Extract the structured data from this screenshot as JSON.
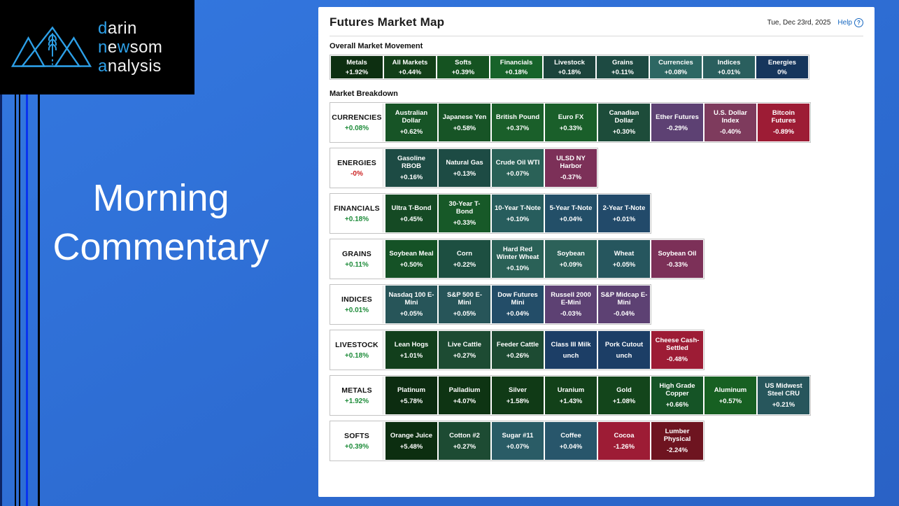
{
  "colors": {
    "accent_logo_blue": "#2da0e8",
    "background_blue": "#2d6cd2",
    "stripe_bright_blue": "#0933ee",
    "positive_label_green": "#1e8c3a",
    "negative_label_red": "#cc2222",
    "help_link_blue": "#1667c0"
  },
  "left": {
    "title_line1": "Morning",
    "title_line2": "Commentary",
    "logo": {
      "lines": [
        {
          "segments": [
            {
              "text": "d",
              "accent": true
            },
            {
              "text": "arin",
              "accent": false
            }
          ]
        },
        {
          "segments": [
            {
              "text": "n",
              "accent": true
            },
            {
              "text": "e",
              "accent": false
            },
            {
              "text": "w",
              "accent": true
            },
            {
              "text": "som",
              "accent": false
            }
          ]
        },
        {
          "segments": [
            {
              "text": "a",
              "accent": true
            },
            {
              "text": "nalysis",
              "accent": false
            }
          ]
        }
      ]
    }
  },
  "panel": {
    "title": "Futures Market Map",
    "date": "Tue, Dec 23rd, 2025",
    "help_label": "Help",
    "help_icon_glyph": "?",
    "overall": {
      "heading": "Overall Market Movement",
      "tiles": [
        {
          "label": "Metals",
          "value": "+1.92%",
          "color": "#0d2f11"
        },
        {
          "label": "All Markets",
          "value": "+0.44%",
          "color": "#123f18"
        },
        {
          "label": "Softs",
          "value": "+0.39%",
          "color": "#155321"
        },
        {
          "label": "Financials",
          "value": "+0.18%",
          "color": "#17632a"
        },
        {
          "label": "Livestock",
          "value": "+0.18%",
          "color": "#1c443c"
        },
        {
          "label": "Grains",
          "value": "+0.11%",
          "color": "#1d4a42"
        },
        {
          "label": "Currencies",
          "value": "+0.08%",
          "color": "#2d6763"
        },
        {
          "label": "Indices",
          "value": "+0.01%",
          "color": "#2a5f5e"
        },
        {
          "label": "Energies",
          "value": "0%",
          "color": "#16365c"
        }
      ]
    },
    "breakdown": {
      "heading": "Market Breakdown",
      "rows": [
        {
          "category": "CURRENCIES",
          "change": "+0.08%",
          "change_color": "#1e8c3a",
          "tiles": [
            {
              "name": "Australian Dollar",
              "value": "+0.62%",
              "color": "#175426"
            },
            {
              "name": "Japanese Yen",
              "value": "+0.58%",
              "color": "#175426"
            },
            {
              "name": "British Pound",
              "value": "+0.37%",
              "color": "#1a5f2a"
            },
            {
              "name": "Euro FX",
              "value": "+0.33%",
              "color": "#1a5f2a"
            },
            {
              "name": "Canadian Dollar",
              "value": "+0.30%",
              "color": "#1d4c3a"
            },
            {
              "name": "Ether Futures",
              "value": "-0.29%",
              "color": "#5d4173"
            },
            {
              "name": "U.S. Dollar Index",
              "value": "-0.40%",
              "color": "#7e3b5d"
            },
            {
              "name": "Bitcoin Futures",
              "value": "-0.89%",
              "color": "#9d1c35"
            }
          ]
        },
        {
          "category": "ENERGIES",
          "change": "-0%",
          "change_color": "#cc2222",
          "tiles": [
            {
              "name": "Gasoline RBOB",
              "value": "+0.16%",
              "color": "#1d4b44"
            },
            {
              "name": "Natural Gas",
              "value": "+0.13%",
              "color": "#1d4b44"
            },
            {
              "name": "Crude Oil WTI",
              "value": "+0.07%",
              "color": "#2a6157"
            },
            {
              "name": "ULSD NY Harbor",
              "value": "-0.37%",
              "color": "#7c3058"
            }
          ]
        },
        {
          "category": "FINANCIALS",
          "change": "+0.18%",
          "change_color": "#1e8c3a",
          "tiles": [
            {
              "name": "Ultra T-Bond",
              "value": "+0.45%",
              "color": "#154a24"
            },
            {
              "name": "30-Year T-Bond",
              "value": "+0.33%",
              "color": "#175928"
            },
            {
              "name": "10-Year T-Note",
              "value": "+0.10%",
              "color": "#275d5d"
            },
            {
              "name": "5-Year T-Note",
              "value": "+0.04%",
              "color": "#234f68"
            },
            {
              "name": "2-Year T-Note",
              "value": "+0.01%",
              "color": "#224a6a"
            }
          ]
        },
        {
          "category": "GRAINS",
          "change": "+0.11%",
          "change_color": "#1e8c3a",
          "tiles": [
            {
              "name": "Soybean Meal",
              "value": "+0.50%",
              "color": "#155226"
            },
            {
              "name": "Corn",
              "value": "+0.22%",
              "color": "#1d4f41"
            },
            {
              "name": "Hard Red Winter Wheat",
              "value": "+0.10%",
              "color": "#2a6157"
            },
            {
              "name": "Soybean",
              "value": "+0.09%",
              "color": "#2c6159"
            },
            {
              "name": "Wheat",
              "value": "+0.05%",
              "color": "#26565e"
            },
            {
              "name": "Soybean Oil",
              "value": "-0.33%",
              "color": "#7c3058"
            }
          ]
        },
        {
          "category": "INDICES",
          "change": "+0.01%",
          "change_color": "#1e8c3a",
          "tiles": [
            {
              "name": "Nasdaq 100 E-Mini",
              "value": "+0.05%",
              "color": "#275559"
            },
            {
              "name": "S&P 500 E-Mini",
              "value": "+0.05%",
              "color": "#275559"
            },
            {
              "name": "Dow Futures Mini",
              "value": "+0.04%",
              "color": "#234d68"
            },
            {
              "name": "Russell 2000 E-Mini",
              "value": "-0.03%",
              "color": "#5d4173"
            },
            {
              "name": "S&P Midcap E-Mini",
              "value": "-0.04%",
              "color": "#5d4173"
            }
          ]
        },
        {
          "category": "LIVESTOCK",
          "change": "+0.18%",
          "change_color": "#1e8c3a",
          "tiles": [
            {
              "name": "Lean Hogs",
              "value": "+1.01%",
              "color": "#123f1c"
            },
            {
              "name": "Live Cattle",
              "value": "+0.27%",
              "color": "#1d4b33"
            },
            {
              "name": "Feeder Cattle",
              "value": "+0.26%",
              "color": "#1d4b33"
            },
            {
              "name": "Class III Milk",
              "value": "unch",
              "color": "#1c3e66"
            },
            {
              "name": "Pork Cutout",
              "value": "unch",
              "color": "#1c3e66"
            },
            {
              "name": "Cheese Cash-Settled",
              "value": "-0.48%",
              "color": "#9d1c35"
            }
          ]
        },
        {
          "category": "METALS",
          "change": "+1.92%",
          "change_color": "#1e8c3a",
          "tiles": [
            {
              "name": "Platinum",
              "value": "+5.78%",
              "color": "#0c2c10"
            },
            {
              "name": "Palladium",
              "value": "+4.07%",
              "color": "#0e3413"
            },
            {
              "name": "Silver",
              "value": "+1.58%",
              "color": "#103a16"
            },
            {
              "name": "Uranium",
              "value": "+1.43%",
              "color": "#124119"
            },
            {
              "name": "Gold",
              "value": "+1.08%",
              "color": "#13451b"
            },
            {
              "name": "High Grade Copper",
              "value": "+0.66%",
              "color": "#155426"
            },
            {
              "name": "Aluminum",
              "value": "+0.57%",
              "color": "#176022"
            },
            {
              "name": "US Midwest Steel CRU",
              "value": "+0.21%",
              "color": "#27565c"
            }
          ]
        },
        {
          "category": "SOFTS",
          "change": "+0.39%",
          "change_color": "#1e8c3a",
          "tiles": [
            {
              "name": "Orange Juice",
              "value": "+5.48%",
              "color": "#0c2e10"
            },
            {
              "name": "Cotton #2",
              "value": "+0.27%",
              "color": "#1d4b33"
            },
            {
              "name": "Sugar #11",
              "value": "+0.07%",
              "color": "#2a5c66"
            },
            {
              "name": "Coffee",
              "value": "+0.04%",
              "color": "#28566b"
            },
            {
              "name": "Cocoa",
              "value": "-1.26%",
              "color": "#9d1c35"
            },
            {
              "name": "Lumber Physical",
              "value": "-2.24%",
              "color": "#6e1420"
            }
          ]
        }
      ]
    }
  }
}
